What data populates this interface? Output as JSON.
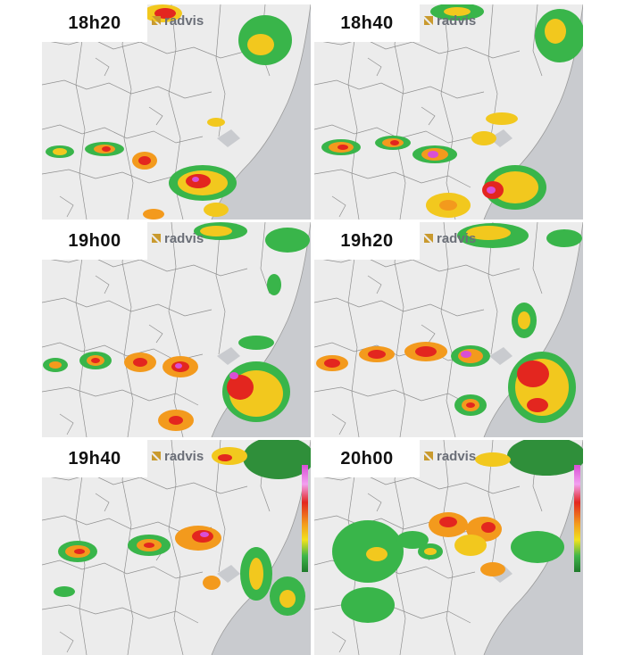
{
  "brand": {
    "name": "radvis",
    "accent": "#c99a2e"
  },
  "colors": {
    "land": "#ececec",
    "sea": "#c9cbcf",
    "border": "#8f8f8f",
    "precip_light": "#39b54a",
    "precip_moderate": "#f2c81e",
    "precip_heavy": "#e3261f",
    "precip_extreme": "#d94fd6"
  },
  "panels": [
    {
      "time": "18h20",
      "has_colorbar": false
    },
    {
      "time": "18h40",
      "has_colorbar": false
    },
    {
      "time": "19h00",
      "has_colorbar": false
    },
    {
      "time": "19h20",
      "has_colorbar": false
    },
    {
      "time": "19h40",
      "has_colorbar": true
    },
    {
      "time": "20h00",
      "has_colorbar": true
    }
  ]
}
